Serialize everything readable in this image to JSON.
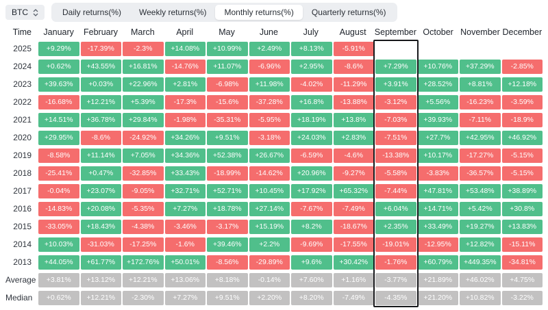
{
  "controls": {
    "symbol": "BTC",
    "symbol_sort_icon": "sort-carets"
  },
  "tabs": [
    {
      "label": "Daily returns(%)",
      "active": false
    },
    {
      "label": "Weekly returns(%)",
      "active": false
    },
    {
      "label": "Monthly returns(%)",
      "active": true
    },
    {
      "label": "Quarterly returns(%)",
      "active": false
    }
  ],
  "colors": {
    "positive": "#50bf8b",
    "negative": "#f56d6d",
    "summary": "#c2c1c1",
    "highlight_border": "#17181b",
    "control_background": "#eceef1"
  },
  "table": {
    "columns": [
      "Time",
      "January",
      "February",
      "March",
      "April",
      "May",
      "June",
      "July",
      "August",
      "September",
      "October",
      "November",
      "December"
    ],
    "highlighted_column": "September",
    "rows": [
      {
        "label": "2025",
        "type": "year",
        "values": [
          "+9.29%",
          "-17.39%",
          "-2.3%",
          "+14.08%",
          "+10.99%",
          "+2.49%",
          "+8.13%",
          "-5.91%",
          "",
          "",
          "",
          ""
        ]
      },
      {
        "label": "2024",
        "type": "year",
        "values": [
          "+0.62%",
          "+43.55%",
          "+16.81%",
          "-14.76%",
          "+11.07%",
          "-6.96%",
          "+2.95%",
          "-8.6%",
          "+7.29%",
          "+10.76%",
          "+37.29%",
          "-2.85%"
        ]
      },
      {
        "label": "2023",
        "type": "year",
        "values": [
          "+39.63%",
          "+0.03%",
          "+22.96%",
          "+2.81%",
          "-6.98%",
          "+11.98%",
          "-4.02%",
          "-11.29%",
          "+3.91%",
          "+28.52%",
          "+8.81%",
          "+12.18%"
        ]
      },
      {
        "label": "2022",
        "type": "year",
        "values": [
          "-16.68%",
          "+12.21%",
          "+5.39%",
          "-17.3%",
          "-15.6%",
          "-37.28%",
          "+16.8%",
          "-13.88%",
          "-3.12%",
          "+5.56%",
          "-16.23%",
          "-3.59%"
        ]
      },
      {
        "label": "2021",
        "type": "year",
        "values": [
          "+14.51%",
          "+36.78%",
          "+29.84%",
          "-1.98%",
          "-35.31%",
          "-5.95%",
          "+18.19%",
          "+13.8%",
          "-7.03%",
          "+39.93%",
          "-7.11%",
          "-18.9%"
        ]
      },
      {
        "label": "2020",
        "type": "year",
        "values": [
          "+29.95%",
          "-8.6%",
          "-24.92%",
          "+34.26%",
          "+9.51%",
          "-3.18%",
          "+24.03%",
          "+2.83%",
          "-7.51%",
          "+27.7%",
          "+42.95%",
          "+46.92%"
        ]
      },
      {
        "label": "2019",
        "type": "year",
        "values": [
          "-8.58%",
          "+11.14%",
          "+7.05%",
          "+34.36%",
          "+52.38%",
          "+26.67%",
          "-6.59%",
          "-4.6%",
          "-13.38%",
          "+10.17%",
          "-17.27%",
          "-5.15%"
        ]
      },
      {
        "label": "2018",
        "type": "year",
        "values": [
          "-25.41%",
          "+0.47%",
          "-32.85%",
          "+33.43%",
          "-18.99%",
          "-14.62%",
          "+20.96%",
          "-9.27%",
          "-5.58%",
          "-3.83%",
          "-36.57%",
          "-5.15%"
        ]
      },
      {
        "label": "2017",
        "type": "year",
        "values": [
          "-0.04%",
          "+23.07%",
          "-9.05%",
          "+32.71%",
          "+52.71%",
          "+10.45%",
          "+17.92%",
          "+65.32%",
          "-7.44%",
          "+47.81%",
          "+53.48%",
          "+38.89%"
        ]
      },
      {
        "label": "2016",
        "type": "year",
        "values": [
          "-14.83%",
          "+20.08%",
          "-5.35%",
          "+7.27%",
          "+18.78%",
          "+27.14%",
          "-7.67%",
          "-7.49%",
          "+6.04%",
          "+14.71%",
          "+5.42%",
          "+30.8%"
        ]
      },
      {
        "label": "2015",
        "type": "year",
        "values": [
          "-33.05%",
          "+18.43%",
          "-4.38%",
          "-3.46%",
          "-3.17%",
          "+15.19%",
          "+8.2%",
          "-18.67%",
          "+2.35%",
          "+33.49%",
          "+19.27%",
          "+13.83%"
        ]
      },
      {
        "label": "2014",
        "type": "year",
        "values": [
          "+10.03%",
          "-31.03%",
          "-17.25%",
          "-1.6%",
          "+39.46%",
          "+2.2%",
          "-9.69%",
          "-17.55%",
          "-19.01%",
          "-12.95%",
          "+12.82%",
          "-15.11%"
        ]
      },
      {
        "label": "2013",
        "type": "year",
        "values": [
          "+44.05%",
          "+61.77%",
          "+172.76%",
          "+50.01%",
          "-8.56%",
          "-29.89%",
          "+9.6%",
          "+30.42%",
          "-1.76%",
          "+60.79%",
          "+449.35%",
          "-34.81%"
        ]
      },
      {
        "label": "Average",
        "type": "summary",
        "values": [
          "+3.81%",
          "+13.12%",
          "+12.21%",
          "+13.06%",
          "+8.18%",
          "-0.14%",
          "+7.60%",
          "+1.16%",
          "-3.77%",
          "+21.89%",
          "+46.02%",
          "+4.75%"
        ]
      },
      {
        "label": "Median",
        "type": "summary",
        "values": [
          "+0.62%",
          "+12.21%",
          "-2.30%",
          "+7.27%",
          "+9.51%",
          "+2.20%",
          "+8.20%",
          "-7.49%",
          "-4.35%",
          "+21.20%",
          "+10.82%",
          "-3.22%"
        ]
      }
    ]
  }
}
